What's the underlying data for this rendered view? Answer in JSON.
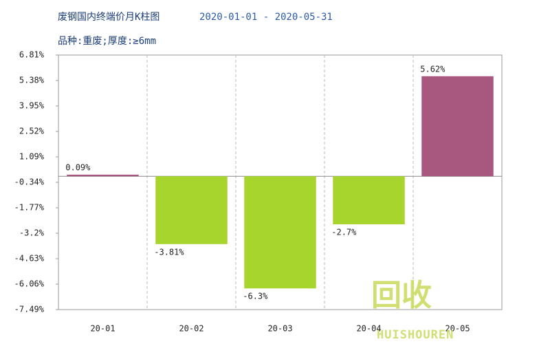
{
  "chart_data": {
    "type": "bar",
    "title": "废钢国内终端价月K柱图",
    "date_range": "2020-01-01 - 2020-05-31",
    "subtitle": "品种:重废;厚度:≥6mm",
    "categories": [
      "20-01",
      "20-02",
      "20-03",
      "20-04",
      "20-05"
    ],
    "values": [
      0.09,
      -3.81,
      -6.3,
      -2.7,
      5.62
    ],
    "value_labels": [
      "0.09%",
      "-3.81%",
      "-6.3%",
      "-2.7%",
      "5.62%"
    ],
    "positive_color": "#a8587f",
    "negative_color": "#a8d42e",
    "ylim": [
      -7.49,
      6.81
    ],
    "yticks": [
      {
        "value": 6.81,
        "label": "6.81%"
      },
      {
        "value": 5.38,
        "label": "5.38%"
      },
      {
        "value": 3.95,
        "label": "3.95%"
      },
      {
        "value": 2.52,
        "label": "2.52%"
      },
      {
        "value": 1.09,
        "label": "1.09%"
      },
      {
        "value": -0.34,
        "label": "-0.34%"
      },
      {
        "value": -1.77,
        "label": "-1.77%"
      },
      {
        "value": -3.2,
        "label": "-3.2%"
      },
      {
        "value": -4.63,
        "label": "-4.63%"
      },
      {
        "value": -6.06,
        "label": "-6.06%"
      },
      {
        "value": -7.49,
        "label": "-7.49%"
      }
    ],
    "watermark": "回收",
    "watermark_text": "HUISHOUREN"
  }
}
